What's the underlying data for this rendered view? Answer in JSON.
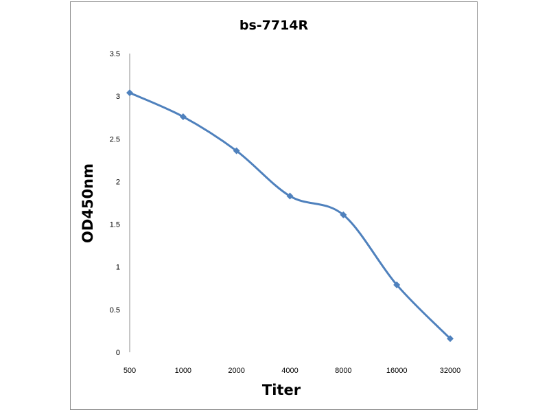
{
  "chart_data": {
    "type": "line",
    "title": "bs-7714R",
    "xlabel": "Titer",
    "ylabel": "OD450nm",
    "categories": [
      "500",
      "1000",
      "2000",
      "4000",
      "8000",
      "16000",
      "32000"
    ],
    "series": [
      {
        "values": [
          3.04,
          2.76,
          2.36,
          1.83,
          1.61,
          0.79,
          0.16
        ]
      }
    ],
    "ylim": [
      0,
      3.5
    ],
    "yticks": [
      0,
      0.5,
      1,
      1.5,
      2,
      2.5,
      3,
      3.5
    ],
    "ytick_labels": [
      "0",
      "0.5",
      "1",
      "1.5",
      "2",
      "2.5",
      "3",
      "3.5"
    ],
    "grid": false,
    "legend": "none",
    "line_color": "#4f81bd",
    "marker": "diamond",
    "smooth": true
  }
}
